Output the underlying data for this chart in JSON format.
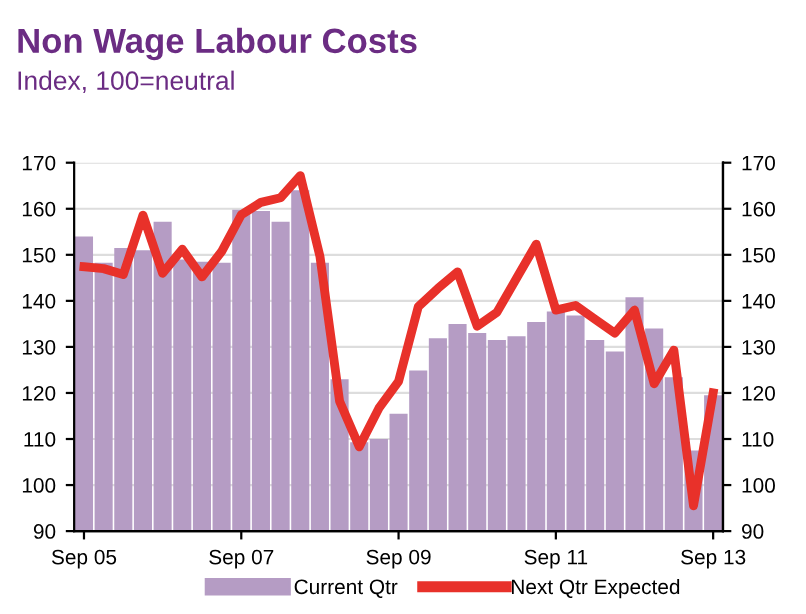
{
  "chart_data": {
    "type": "bar",
    "title": "Non Wage Labour Costs",
    "subtitle": "Index, 100=neutral",
    "categories": [
      "Sep 05",
      null,
      null,
      null,
      null,
      null,
      null,
      null,
      "Sep 07",
      null,
      null,
      null,
      null,
      null,
      null,
      null,
      "Sep 09",
      null,
      null,
      null,
      null,
      null,
      null,
      null,
      "Sep 11",
      null,
      null,
      null,
      null,
      null,
      null,
      null,
      "Sep 13"
    ],
    "series": [
      {
        "name": "Current Qtr",
        "color": "#b59cc4",
        "values": [
          154,
          148.3,
          151.5,
          151,
          157.2,
          149,
          148.5,
          148.3,
          159.8,
          159.5,
          157.2,
          164,
          148.3,
          123,
          109.3,
          110,
          115.5,
          124.9,
          131.9,
          135,
          133,
          131.5,
          132.3,
          135.4,
          137.7,
          136.8,
          131.5,
          129,
          140.8,
          134,
          123.4,
          107.5,
          119.5
        ]
      },
      {
        "name": "Next Qtr Expected",
        "type": "line",
        "color": "#e8312a",
        "values": [
          147.4,
          147,
          145.7,
          158.6,
          146,
          151.2,
          145.2,
          150.7,
          158.7,
          161.4,
          162.4,
          167.2,
          149.7,
          118.2,
          108.3,
          116.7,
          122.5,
          138.7,
          142.7,
          146.3,
          134.5,
          137.5,
          144.9,
          152.3,
          138,
          139,
          136,
          133,
          138,
          122,
          129.3,
          95.5,
          120
        ]
      }
    ],
    "ylim": [
      90,
      170
    ],
    "yticks": [
      90,
      100,
      110,
      120,
      130,
      140,
      150,
      160,
      170
    ],
    "y2lim": [
      90,
      170
    ],
    "y2ticks": [
      90,
      100,
      110,
      120,
      130,
      140,
      150,
      160,
      170
    ],
    "grid": "y",
    "legend": "bottom"
  }
}
